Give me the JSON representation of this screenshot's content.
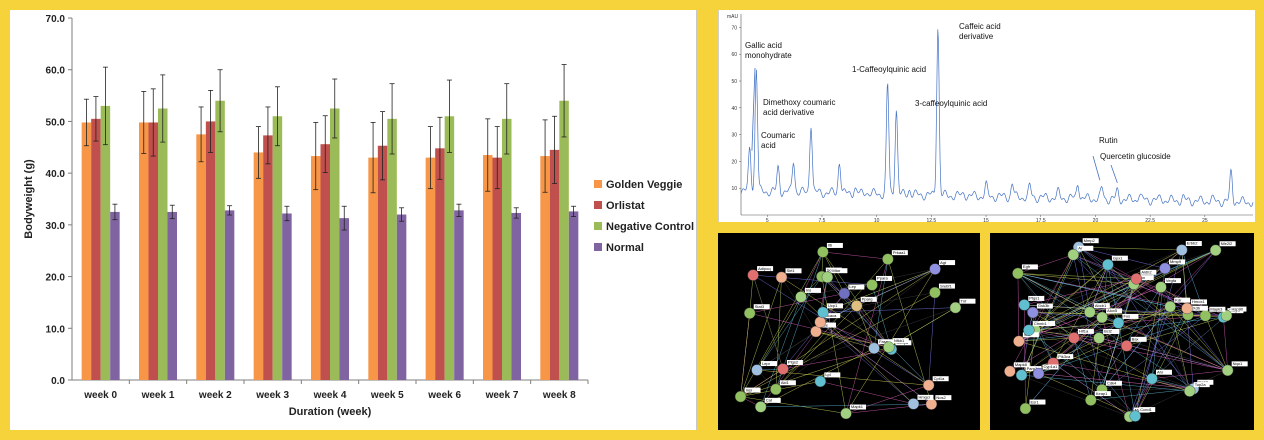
{
  "colors": {
    "background": "#f6d33a",
    "golden_veggie": "#f79646",
    "orlistat": "#c0504d",
    "negative_control": "#9bbb59",
    "normal": "#8064a2",
    "chromatogram_line": "#4472c4"
  },
  "chart_data": [
    {
      "type": "bar",
      "ylabel": "Bodyweight (g)",
      "xlabel": "Duration (week)",
      "ylim": [
        0,
        70
      ],
      "yticks": [
        "0.0",
        "10.0",
        "20.0",
        "30.0",
        "40.0",
        "50.0",
        "60.0",
        "70.0"
      ],
      "categories": [
        "week 0",
        "week 1",
        "week 2",
        "week 3",
        "week 4",
        "week 5",
        "week 6",
        "week 7",
        "week 8"
      ],
      "legend_position": "right",
      "grid": false,
      "series": [
        {
          "name": "Golden Veggie",
          "values": [
            49.8,
            49.8,
            47.5,
            44.0,
            43.3,
            43.0,
            43.0,
            43.5,
            43.3
          ],
          "errors": [
            4.5,
            6.0,
            5.3,
            5.0,
            6.5,
            6.8,
            6.0,
            7.0,
            7.0
          ]
        },
        {
          "name": "Orlistat",
          "values": [
            50.5,
            49.8,
            50.0,
            47.3,
            45.6,
            45.3,
            44.8,
            43.0,
            44.5
          ],
          "errors": [
            4.3,
            6.5,
            6.0,
            5.5,
            5.5,
            6.6,
            6.0,
            6.0,
            6.5
          ]
        },
        {
          "name": "Negative Control",
          "values": [
            53.0,
            52.5,
            54.0,
            51.0,
            52.5,
            50.5,
            51.0,
            50.5,
            54.0
          ],
          "errors": [
            7.5,
            6.5,
            6.0,
            5.7,
            5.7,
            6.8,
            7.0,
            6.8,
            7.0
          ]
        },
        {
          "name": "Normal",
          "values": [
            32.5,
            32.5,
            32.8,
            32.2,
            31.3,
            32.0,
            32.8,
            32.3,
            32.6
          ],
          "errors": [
            1.5,
            1.3,
            0.9,
            1.4,
            2.3,
            1.3,
            1.2,
            1.0,
            1.0
          ]
        }
      ]
    },
    {
      "type": "line",
      "yticks": [
        "70",
        "60",
        "50",
        "40",
        "30",
        "20",
        "10"
      ],
      "ytick_values": [
        70,
        60,
        50,
        40,
        30,
        20,
        10
      ],
      "xticks": [
        "5",
        "7.5",
        "10",
        "12.5",
        "15",
        "17.5",
        "20",
        "22.5",
        "25"
      ],
      "xtick_values": [
        5,
        7.5,
        10,
        12.5,
        15,
        17.5,
        20,
        22.5,
        25
      ],
      "axis_top_label": "mAU",
      "xlim": [
        3.8,
        27.2
      ],
      "ylim": [
        0,
        75
      ],
      "peaks": [
        {
          "x": 4.2,
          "y": 25
        },
        {
          "x": 4.5,
          "y": 55
        },
        {
          "x": 5.5,
          "y": 18
        },
        {
          "x": 6.2,
          "y": 21
        },
        {
          "x": 7.0,
          "y": 35
        },
        {
          "x": 8.3,
          "y": 21
        },
        {
          "x": 9.0,
          "y": 11
        },
        {
          "x": 9.5,
          "y": 10
        },
        {
          "x": 10.5,
          "y": 50
        },
        {
          "x": 10.9,
          "y": 41
        },
        {
          "x": 11.5,
          "y": 11
        },
        {
          "x": 12.8,
          "y": 72
        },
        {
          "x": 14.0,
          "y": 10
        },
        {
          "x": 15.0,
          "y": 13
        },
        {
          "x": 16.2,
          "y": 14
        },
        {
          "x": 17.0,
          "y": 13
        },
        {
          "x": 18.3,
          "y": 11
        },
        {
          "x": 19.2,
          "y": 15
        },
        {
          "x": 20.3,
          "y": 13
        },
        {
          "x": 21.0,
          "y": 12
        },
        {
          "x": 22.0,
          "y": 11
        },
        {
          "x": 23.0,
          "y": 10
        },
        {
          "x": 24.0,
          "y": 10
        },
        {
          "x": 25.3,
          "y": 10
        },
        {
          "x": 26.2,
          "y": 20
        }
      ],
      "annotations": [
        {
          "lines": [
            "Gallic acid",
            "monohydrate"
          ],
          "x": 4.2,
          "y": 25
        },
        {
          "lines": [
            "Dimethoxy coumaric",
            "acid derivative"
          ],
          "x": 7.0,
          "y": 35
        },
        {
          "lines": [
            "Coumaric",
            "acid"
          ],
          "x": 6.2,
          "y": 21
        },
        {
          "lines": [
            "1-Caffeoylquinic acid"
          ],
          "x": 10.5,
          "y": 50
        },
        {
          "lines": [
            "3-caffeoylquinic acid"
          ],
          "x": 10.9,
          "y": 41
        },
        {
          "lines": [
            "Caffeic acid",
            "derivative"
          ],
          "x": 12.8,
          "y": 72
        },
        {
          "lines": [
            "Rutin"
          ],
          "x": 20.3,
          "y": 13
        },
        {
          "lines": [
            "Quercetin glucoside"
          ],
          "x": 21.0,
          "y": 12
        }
      ]
    }
  ],
  "networks": [
    {
      "nodes": [
        {
          "label": "Nos2",
          "c": "#f0b090"
        },
        {
          "label": "Stat3",
          "c": "#90c060"
        },
        {
          "label": "Agt",
          "c": "#9090e0"
        },
        {
          "label": "Ace",
          "c": "#f0b090"
        },
        {
          "label": "Ppara",
          "c": "#90c060"
        },
        {
          "label": "Cat",
          "c": "#a0d080"
        },
        {
          "label": "Sod1",
          "c": "#90c060"
        },
        {
          "label": "Lep",
          "c": "#7070c0"
        },
        {
          "label": "Lepr",
          "c": "#a0c0e0"
        },
        {
          "label": "Ins",
          "c": "#a0d080"
        },
        {
          "label": "Insr",
          "c": "#90c060"
        },
        {
          "label": "Akt1",
          "c": "#90c060"
        },
        {
          "label": "Mtor",
          "c": "#a0d080"
        },
        {
          "label": "Pparg",
          "c": "#e0c080"
        },
        {
          "label": "Cebpa",
          "c": "#60c0d0"
        },
        {
          "label": "Adipoq",
          "c": "#e07070"
        },
        {
          "label": "Il6",
          "c": "#90c060"
        },
        {
          "label": "Tnf",
          "c": "#a0d080"
        },
        {
          "label": "Fasn",
          "c": "#a0c0e0"
        },
        {
          "label": "Srebf1",
          "c": "#90c060"
        },
        {
          "label": "Acaca",
          "c": "#f0b090"
        },
        {
          "label": "Lpl",
          "c": "#60c0d0"
        },
        {
          "label": "Ucp1",
          "c": "#60c0d0"
        },
        {
          "label": "Sirt1",
          "c": "#f0b090"
        },
        {
          "label": "Prkaa1",
          "c": "#90c060"
        },
        {
          "label": "Ptgs2",
          "c": "#e07070"
        },
        {
          "label": "Hmgcr",
          "c": "#a0c0e0"
        },
        {
          "label": "Cpt1a",
          "c": "#f0b090"
        },
        {
          "label": "Nfkb1",
          "c": "#a0d080"
        },
        {
          "label": "Mapk1",
          "c": "#a0d080"
        }
      ]
    },
    {
      "nodes": [
        {
          "label": "Mmp2",
          "c": "#a0c0e0"
        },
        {
          "label": "Mmp9",
          "c": "#9090e0"
        },
        {
          "label": "Casp3",
          "c": "#60c0d0"
        },
        {
          "label": "Bcl2",
          "c": "#a0d080"
        },
        {
          "label": "Bax",
          "c": "#e07070"
        },
        {
          "label": "Tp53",
          "c": "#a0d080"
        },
        {
          "label": "Egfr",
          "c": "#90c060"
        },
        {
          "label": "Vegfa",
          "c": "#a0d080"
        },
        {
          "label": "Src",
          "c": "#f0b090"
        },
        {
          "label": "Jun",
          "c": "#a0d080"
        },
        {
          "label": "Fos",
          "c": "#60c0d0"
        },
        {
          "label": "Esr1",
          "c": "#90c060"
        },
        {
          "label": "Ar",
          "c": "#a0d080"
        },
        {
          "label": "Hif1a",
          "c": "#e07070"
        },
        {
          "label": "Myc",
          "c": "#a0d080"
        },
        {
          "label": "Ccnd1",
          "c": "#60c0d0"
        },
        {
          "label": "Cdk4",
          "c": "#90c060"
        },
        {
          "label": "Erbb2",
          "c": "#a0c0e0"
        },
        {
          "label": "Kdr",
          "c": "#a0d080"
        },
        {
          "label": "Pik3ca",
          "c": "#e07070"
        },
        {
          "label": "Gsk3b",
          "c": "#9090e0"
        },
        {
          "label": "Ctnnb1",
          "c": "#60c0d0"
        },
        {
          "label": "Hsp90",
          "c": "#a0d080"
        },
        {
          "label": "Mapk3",
          "c": "#90c060"
        },
        {
          "label": "Mapk8",
          "c": "#f0b090"
        },
        {
          "label": "Ptgs1",
          "c": "#60c0d0"
        },
        {
          "label": "Alox5",
          "c": "#a0d080"
        },
        {
          "label": "Xdh",
          "c": "#90c060"
        },
        {
          "label": "Nos3",
          "c": "#a0c0e0"
        },
        {
          "label": "Parp1",
          "c": "#60c0d0"
        },
        {
          "label": "Top2a",
          "c": "#a0d080"
        },
        {
          "label": "Aldh2",
          "c": "#e07070"
        },
        {
          "label": "Cyp1a1",
          "c": "#9090e0"
        },
        {
          "label": "Abcb1",
          "c": "#a0d080"
        },
        {
          "label": "Ahr",
          "c": "#60c0d0"
        },
        {
          "label": "Nqo1",
          "c": "#a0d080"
        },
        {
          "label": "Hmox1",
          "c": "#f0b090"
        },
        {
          "label": "Keap1",
          "c": "#90c060"
        },
        {
          "label": "Nfe2l2",
          "c": "#a0d080"
        },
        {
          "label": "Gpx1",
          "c": "#60c0d0"
        }
      ]
    }
  ]
}
